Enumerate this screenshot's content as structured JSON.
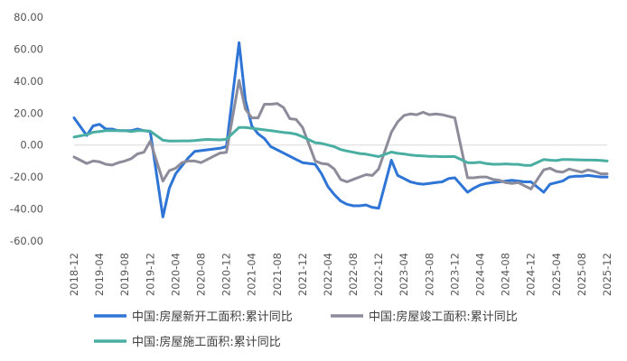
{
  "chart_data": {
    "type": "line",
    "title": "",
    "xlabel": "",
    "ylabel": "",
    "ylim": [
      -60,
      80
    ],
    "y_ticks": [
      "80.00",
      "60.00",
      "40.00",
      "20.00",
      "0.00",
      "-20.00",
      "-40.00",
      "-60.00"
    ],
    "x_start": "2018-12",
    "x_end": "2025-12",
    "x_ticks": [
      "2018-12",
      "2019-04",
      "2019-08",
      "2019-12",
      "2020-04",
      "2020-08",
      "2020-12",
      "2021-04",
      "2021-08",
      "2021-12",
      "2022-04",
      "2022-08",
      "2022-12",
      "2023-04",
      "2023-08",
      "2023-12",
      "2024-04",
      "2024-08",
      "2024-12",
      "2025-04",
      "2025-08",
      "2025-12"
    ],
    "legend_position": "bottom",
    "grid": false,
    "series": [
      {
        "name": "中国:房屋新开工面积:累计同比",
        "color": "#2f75d6",
        "points": [
          [
            "2018-12",
            17
          ],
          [
            "2019-02",
            6
          ],
          [
            "2019-03",
            12
          ],
          [
            "2019-04",
            13
          ],
          [
            "2019-05",
            10
          ],
          [
            "2019-06",
            10
          ],
          [
            "2019-07",
            9
          ],
          [
            "2019-09",
            9
          ],
          [
            "2019-10",
            10
          ],
          [
            "2019-11",
            9
          ],
          [
            "2019-12",
            8.5
          ],
          [
            "2020-02",
            -45
          ],
          [
            "2020-03",
            -27
          ],
          [
            "2020-04",
            -18
          ],
          [
            "2020-05",
            -13
          ],
          [
            "2020-06",
            -8
          ],
          [
            "2020-07",
            -4
          ],
          [
            "2020-08",
            -3.5
          ],
          [
            "2020-09",
            -3
          ],
          [
            "2020-10",
            -2.5
          ],
          [
            "2020-11",
            -2
          ],
          [
            "2020-12",
            -1
          ],
          [
            "2021-02",
            64
          ],
          [
            "2021-03",
            28
          ],
          [
            "2021-04",
            12
          ],
          [
            "2021-05",
            7
          ],
          [
            "2021-06",
            4
          ],
          [
            "2021-07",
            -1
          ],
          [
            "2021-08",
            -3
          ],
          [
            "2021-09",
            -5
          ],
          [
            "2021-10",
            -7
          ],
          [
            "2021-11",
            -9
          ],
          [
            "2021-12",
            -11
          ],
          [
            "2022-02",
            -12
          ],
          [
            "2022-03",
            -18
          ],
          [
            "2022-04",
            -26
          ],
          [
            "2022-05",
            -31
          ],
          [
            "2022-06",
            -35
          ],
          [
            "2022-07",
            -37
          ],
          [
            "2022-08",
            -38
          ],
          [
            "2022-09",
            -38
          ],
          [
            "2022-10",
            -37.5
          ],
          [
            "2022-11",
            -39
          ],
          [
            "2022-12",
            -39.5
          ],
          [
            "2023-02",
            -9.5
          ],
          [
            "2023-03",
            -19
          ],
          [
            "2023-04",
            -21
          ],
          [
            "2023-05",
            -23
          ],
          [
            "2023-06",
            -24
          ],
          [
            "2023-07",
            -24.5
          ],
          [
            "2023-08",
            -24
          ],
          [
            "2023-09",
            -23.5
          ],
          [
            "2023-10",
            -23
          ],
          [
            "2023-11",
            -21
          ],
          [
            "2023-12",
            -20.5
          ],
          [
            "2024-02",
            -29.5
          ],
          [
            "2024-03",
            -27
          ],
          [
            "2024-04",
            -25
          ],
          [
            "2024-05",
            -24
          ],
          [
            "2024-06",
            -23.5
          ],
          [
            "2024-07",
            -23
          ],
          [
            "2024-08",
            -22.5
          ],
          [
            "2024-09",
            -22
          ],
          [
            "2024-10",
            -22.5
          ],
          [
            "2024-11",
            -23
          ],
          [
            "2024-12",
            -23
          ],
          [
            "2025-02",
            -29.5
          ],
          [
            "2025-03",
            -24.5
          ],
          [
            "2025-04",
            -23.5
          ],
          [
            "2025-05",
            -22.5
          ],
          [
            "2025-06",
            -20
          ],
          [
            "2025-07",
            -19.5
          ],
          [
            "2025-08",
            -19.5
          ],
          [
            "2025-09",
            -19
          ],
          [
            "2025-10",
            -19.5
          ],
          [
            "2025-11",
            -20
          ],
          [
            "2025-12",
            -20
          ]
        ]
      },
      {
        "name": "中国:房屋竣工面积:累计同比",
        "color": "#8c8c9b",
        "points": [
          [
            "2018-12",
            -7.5
          ],
          [
            "2019-02",
            -11.5
          ],
          [
            "2019-03",
            -10
          ],
          [
            "2019-04",
            -10.5
          ],
          [
            "2019-05",
            -12
          ],
          [
            "2019-06",
            -12.5
          ],
          [
            "2019-07",
            -11
          ],
          [
            "2019-08",
            -10
          ],
          [
            "2019-09",
            -8.5
          ],
          [
            "2019-10",
            -5.5
          ],
          [
            "2019-11",
            -4.5
          ],
          [
            "2019-12",
            2.5
          ],
          [
            "2020-02",
            -22.5
          ],
          [
            "2020-03",
            -16
          ],
          [
            "2020-04",
            -14.5
          ],
          [
            "2020-05",
            -11
          ],
          [
            "2020-06",
            -10
          ],
          [
            "2020-07",
            -10
          ],
          [
            "2020-08",
            -11
          ],
          [
            "2020-09",
            -9
          ],
          [
            "2020-10",
            -7
          ],
          [
            "2020-11",
            -5
          ],
          [
            "2020-12",
            -4.5
          ],
          [
            "2021-02",
            40.5
          ],
          [
            "2021-03",
            22.5
          ],
          [
            "2021-04",
            17
          ],
          [
            "2021-05",
            17
          ],
          [
            "2021-06",
            25.5
          ],
          [
            "2021-07",
            25.5
          ],
          [
            "2021-08",
            26
          ],
          [
            "2021-09",
            23.5
          ],
          [
            "2021-10",
            16.5
          ],
          [
            "2021-11",
            16
          ],
          [
            "2021-12",
            11
          ],
          [
            "2022-02",
            -10
          ],
          [
            "2022-03",
            -11.5
          ],
          [
            "2022-04",
            -12
          ],
          [
            "2022-05",
            -15
          ],
          [
            "2022-06",
            -21.5
          ],
          [
            "2022-07",
            -23
          ],
          [
            "2022-08",
            -21.5
          ],
          [
            "2022-09",
            -20
          ],
          [
            "2022-10",
            -18.5
          ],
          [
            "2022-11",
            -19
          ],
          [
            "2022-12",
            -15
          ],
          [
            "2023-02",
            8
          ],
          [
            "2023-03",
            14.5
          ],
          [
            "2023-04",
            18.5
          ],
          [
            "2023-05",
            19.5
          ],
          [
            "2023-06",
            19
          ],
          [
            "2023-07",
            20.5
          ],
          [
            "2023-08",
            19
          ],
          [
            "2023-09",
            19.5
          ],
          [
            "2023-10",
            19
          ],
          [
            "2023-11",
            18
          ],
          [
            "2023-12",
            17
          ],
          [
            "2024-02",
            -20.5
          ],
          [
            "2024-03",
            -20.5
          ],
          [
            "2024-04",
            -20
          ],
          [
            "2024-05",
            -20
          ],
          [
            "2024-06",
            -21.5
          ],
          [
            "2024-07",
            -22
          ],
          [
            "2024-08",
            -23.5
          ],
          [
            "2024-09",
            -24
          ],
          [
            "2024-10",
            -23.5
          ],
          [
            "2024-11",
            -25.5
          ],
          [
            "2024-12",
            -27.5
          ],
          [
            "2025-02",
            -15.5
          ],
          [
            "2025-03",
            -14.5
          ],
          [
            "2025-04",
            -16.5
          ],
          [
            "2025-05",
            -17
          ],
          [
            "2025-06",
            -15
          ],
          [
            "2025-07",
            -16
          ],
          [
            "2025-08",
            -17
          ],
          [
            "2025-09",
            -15.5
          ],
          [
            "2025-10",
            -16.5
          ],
          [
            "2025-11",
            -18
          ],
          [
            "2025-12",
            -18
          ]
        ]
      },
      {
        "name": "中国:房屋施工面积:累计同比",
        "color": "#4aaea2",
        "points": [
          [
            "2018-12",
            5
          ],
          [
            "2019-02",
            6.5
          ],
          [
            "2019-03",
            8
          ],
          [
            "2019-04",
            8.5
          ],
          [
            "2019-05",
            9
          ],
          [
            "2019-06",
            9
          ],
          [
            "2019-07",
            9
          ],
          [
            "2019-08",
            9
          ],
          [
            "2019-09",
            8.5
          ],
          [
            "2019-10",
            9
          ],
          [
            "2019-11",
            9
          ],
          [
            "2019-12",
            8.7
          ],
          [
            "2020-02",
            3
          ],
          [
            "2020-03",
            2.5
          ],
          [
            "2020-04",
            2.5
          ],
          [
            "2020-05",
            2.6
          ],
          [
            "2020-06",
            2.6
          ],
          [
            "2020-07",
            2.8
          ],
          [
            "2020-08",
            3.2
          ],
          [
            "2020-09",
            3.5
          ],
          [
            "2020-10",
            3.4
          ],
          [
            "2020-11",
            3.2
          ],
          [
            "2020-12",
            3.7
          ],
          [
            "2021-02",
            11
          ],
          [
            "2021-03",
            11
          ],
          [
            "2021-04",
            10.5
          ],
          [
            "2021-05",
            10
          ],
          [
            "2021-06",
            9.5
          ],
          [
            "2021-07",
            9
          ],
          [
            "2021-08",
            8.5
          ],
          [
            "2021-09",
            7.9
          ],
          [
            "2021-10",
            7.5
          ],
          [
            "2021-11",
            6.8
          ],
          [
            "2021-12",
            5.2
          ],
          [
            "2022-02",
            1.5
          ],
          [
            "2022-03",
            1
          ],
          [
            "2022-04",
            0
          ],
          [
            "2022-05",
            -1
          ],
          [
            "2022-06",
            -2.8
          ],
          [
            "2022-07",
            -3.7
          ],
          [
            "2022-08",
            -4.5
          ],
          [
            "2022-09",
            -5.3
          ],
          [
            "2022-10",
            -5.7
          ],
          [
            "2022-11",
            -6.5
          ],
          [
            "2022-12",
            -7.2
          ],
          [
            "2023-02",
            -4.4
          ],
          [
            "2023-03",
            -5.2
          ],
          [
            "2023-04",
            -5.6
          ],
          [
            "2023-05",
            -6.2
          ],
          [
            "2023-06",
            -6.6
          ],
          [
            "2023-07",
            -6.8
          ],
          [
            "2023-08",
            -7.1
          ],
          [
            "2023-09",
            -7.1
          ],
          [
            "2023-10",
            -7.3
          ],
          [
            "2023-11",
            -7.2
          ],
          [
            "2023-12",
            -7.2
          ],
          [
            "2024-02",
            -11
          ],
          [
            "2024-03",
            -11.1
          ],
          [
            "2024-04",
            -10.8
          ],
          [
            "2024-05",
            -11.6
          ],
          [
            "2024-06",
            -12
          ],
          [
            "2024-07",
            -12
          ],
          [
            "2024-08",
            -11.8
          ],
          [
            "2024-09",
            -12
          ],
          [
            "2024-10",
            -12.1
          ],
          [
            "2024-11",
            -12.7
          ],
          [
            "2024-12",
            -12.7
          ],
          [
            "2025-02",
            -9.1
          ],
          [
            "2025-03",
            -9.5
          ],
          [
            "2025-04",
            -9.7
          ],
          [
            "2025-05",
            -9
          ],
          [
            "2025-06",
            -9.1
          ],
          [
            "2025-07",
            -9.2
          ],
          [
            "2025-08",
            -9.3
          ],
          [
            "2025-09",
            -9.4
          ],
          [
            "2025-10",
            -9.4
          ],
          [
            "2025-11",
            -9.6
          ],
          [
            "2025-12",
            -10
          ]
        ]
      }
    ]
  }
}
